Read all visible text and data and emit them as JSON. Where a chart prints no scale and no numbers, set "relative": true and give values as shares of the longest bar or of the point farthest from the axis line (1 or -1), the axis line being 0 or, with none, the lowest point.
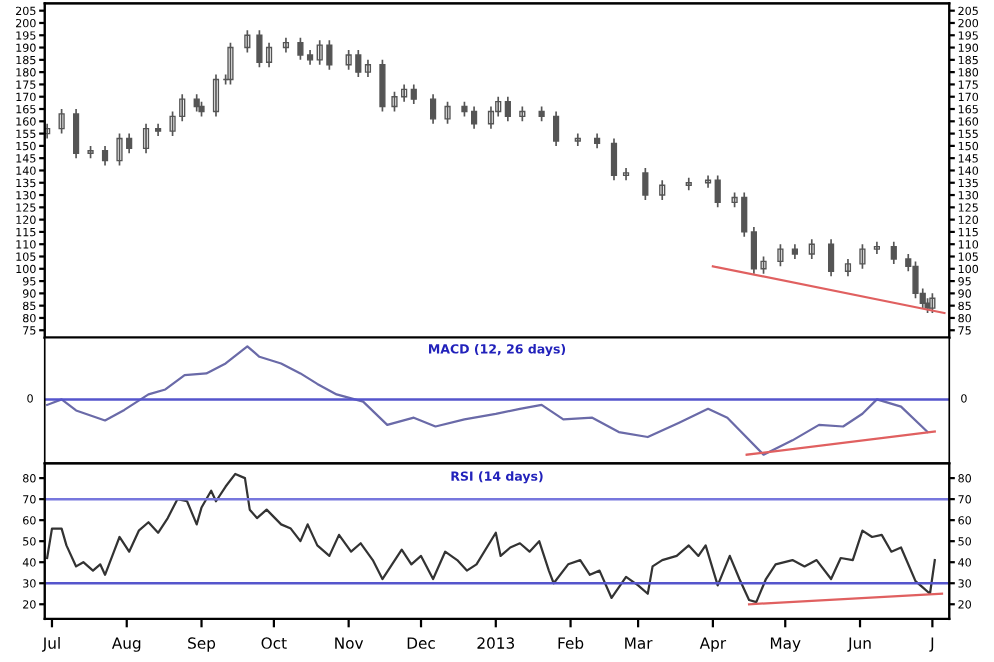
{
  "chart_data": [
    {
      "type": "candlestick",
      "xlim": [
        "2012-06-28",
        "2013-07-08"
      ],
      "ylim": [
        72,
        208
      ],
      "yticks": [
        75,
        80,
        85,
        90,
        95,
        100,
        105,
        110,
        115,
        120,
        125,
        130,
        135,
        140,
        145,
        150,
        155,
        160,
        165,
        170,
        175,
        180,
        185,
        190,
        195,
        200,
        205
      ],
      "y2lim": [
        72,
        208
      ],
      "y2ticks": [
        75,
        80,
        85,
        90,
        95,
        100,
        105,
        110,
        115,
        120,
        125,
        130,
        135,
        140,
        145,
        150,
        155,
        160,
        165,
        170,
        175,
        180,
        185,
        190,
        195,
        200,
        205
      ],
      "tick_labels": "y",
      "grid": false,
      "color": "#555555",
      "x": [
        "2012-06-29",
        "2012-07-05",
        "2012-07-11",
        "2012-07-17",
        "2012-07-23",
        "2012-07-29",
        "2012-08-02",
        "2012-08-09",
        "2012-08-14",
        "2012-08-20",
        "2012-08-24",
        "2012-08-30",
        "2012-09-01",
        "2012-09-07",
        "2012-09-11",
        "2012-09-13",
        "2012-09-20",
        "2012-09-25",
        "2012-09-29",
        "2012-10-06",
        "2012-10-12",
        "2012-10-16",
        "2012-10-20",
        "2012-10-24",
        "2012-11-01",
        "2012-11-05",
        "2012-11-09",
        "2012-11-15",
        "2012-11-20",
        "2012-11-24",
        "2012-11-28",
        "2012-12-06",
        "2012-12-12",
        "2012-12-19",
        "2012-12-23",
        "2012-12-30",
        "2013-01-02",
        "2013-01-06",
        "2013-01-12",
        "2013-01-20",
        "2013-01-26",
        "2013-02-04",
        "2013-02-12",
        "2013-02-19",
        "2013-02-24",
        "2013-03-04",
        "2013-03-11",
        "2013-03-22",
        "2013-03-30",
        "2013-04-03",
        "2013-04-10",
        "2013-04-14",
        "2013-04-18",
        "2013-04-22",
        "2013-04-29",
        "2013-05-05",
        "2013-05-12",
        "2013-05-20",
        "2013-05-27",
        "2013-06-02",
        "2013-06-08",
        "2013-06-15",
        "2013-06-21",
        "2013-06-24",
        "2013-06-27",
        "2013-06-29",
        "2013-07-01"
      ],
      "ohlc": [
        [
          155,
          159,
          153,
          157
        ],
        [
          157,
          165,
          155,
          163
        ],
        [
          163,
          165,
          145,
          147
        ],
        [
          147,
          150,
          145,
          148
        ],
        [
          148,
          150,
          142,
          144
        ],
        [
          144,
          155,
          142,
          153
        ],
        [
          153,
          155,
          147,
          149
        ],
        [
          149,
          159,
          147,
          157
        ],
        [
          157,
          159,
          154,
          156
        ],
        [
          156,
          164,
          154,
          162
        ],
        [
          162,
          171,
          160,
          169
        ],
        [
          169,
          171,
          164,
          166
        ],
        [
          166,
          168,
          162,
          164
        ],
        [
          164,
          179,
          162,
          177
        ],
        [
          177,
          179,
          175,
          177
        ],
        [
          177,
          192,
          175,
          190
        ],
        [
          190,
          197,
          188,
          195
        ],
        [
          195,
          197,
          182,
          184
        ],
        [
          184,
          192,
          182,
          190
        ],
        [
          190,
          194,
          188,
          192
        ],
        [
          192,
          194,
          185,
          187
        ],
        [
          187,
          189,
          183,
          185
        ],
        [
          185,
          193,
          183,
          191
        ],
        [
          191,
          193,
          181,
          183
        ],
        [
          183,
          189,
          181,
          187
        ],
        [
          187,
          189,
          178,
          180
        ],
        [
          180,
          185,
          178,
          183
        ],
        [
          183,
          185,
          164,
          166
        ],
        [
          166,
          172,
          164,
          170
        ],
        [
          170,
          175,
          168,
          173
        ],
        [
          173,
          175,
          167,
          169
        ],
        [
          169,
          171,
          159,
          161
        ],
        [
          161,
          168,
          159,
          166
        ],
        [
          166,
          168,
          162,
          164
        ],
        [
          164,
          166,
          157,
          159
        ],
        [
          159,
          166,
          157,
          164
        ],
        [
          164,
          170,
          162,
          168
        ],
        [
          168,
          170,
          160,
          162
        ],
        [
          162,
          166,
          160,
          164
        ],
        [
          164,
          166,
          160,
          162
        ],
        [
          162,
          164,
          150,
          152
        ],
        [
          152,
          155,
          150,
          153
        ],
        [
          153,
          155,
          149,
          151
        ],
        [
          151,
          153,
          136,
          138
        ],
        [
          138,
          141,
          136,
          139
        ],
        [
          139,
          141,
          128,
          130
        ],
        [
          130,
          136,
          128,
          134
        ],
        [
          134,
          137,
          132,
          135
        ],
        [
          135,
          138,
          133,
          136
        ],
        [
          136,
          138,
          125,
          127
        ],
        [
          127,
          131,
          125,
          129
        ],
        [
          129,
          131,
          113,
          115
        ],
        [
          115,
          117,
          98,
          100
        ],
        [
          100,
          105,
          98,
          103
        ],
        [
          103,
          110,
          101,
          108
        ],
        [
          108,
          110,
          104,
          106
        ],
        [
          106,
          112,
          104,
          110
        ],
        [
          110,
          112,
          97,
          99
        ],
        [
          99,
          104,
          97,
          102
        ],
        [
          102,
          110,
          100,
          108
        ],
        [
          108,
          111,
          106,
          109
        ],
        [
          109,
          111,
          102,
          104
        ],
        [
          104,
          106,
          99,
          101
        ],
        [
          101,
          103,
          88,
          90
        ],
        [
          90,
          92,
          84,
          86
        ],
        [
          86,
          88,
          82,
          84
        ],
        [
          84,
          90,
          82,
          88
        ]
      ],
      "series": [
        {
          "type": "line",
          "color": "#e06060",
          "x": [
            "2013-04-01",
            "2013-07-06"
          ],
          "values": [
            101,
            82
          ]
        }
      ]
    },
    {
      "type": "line",
      "title": "MACD (12, 26 days)",
      "relative": true,
      "xlim": [
        "2012-06-28",
        "2013-07-08"
      ],
      "tick_labels": false,
      "grid": false,
      "ref_lines": [
        {
          "axis": "y",
          "value": 0,
          "label": "0",
          "color": "#5555cc"
        }
      ],
      "series": [
        {
          "color": "#6a6aa8",
          "x": [
            "2012-06-29",
            "2012-07-05",
            "2012-07-11",
            "2012-07-23",
            "2012-07-31",
            "2012-08-10",
            "2012-08-17",
            "2012-08-25",
            "2012-09-03",
            "2012-09-11",
            "2012-09-20",
            "2012-09-25",
            "2012-10-04",
            "2012-10-12",
            "2012-10-19",
            "2012-10-27",
            "2012-11-07",
            "2012-11-17",
            "2012-11-28",
            "2012-12-07",
            "2012-12-19",
            "2013-01-01",
            "2013-01-11",
            "2013-01-20",
            "2013-01-29",
            "2013-02-10",
            "2013-02-21",
            "2013-03-05",
            "2013-03-18",
            "2013-03-30",
            "2013-04-07",
            "2013-04-22",
            "2013-05-04",
            "2013-05-15",
            "2013-05-25",
            "2013-06-02",
            "2013-06-08",
            "2013-06-18",
            "2013-06-29"
          ],
          "values": [
            -0.1,
            0,
            -0.2,
            -0.38,
            -0.19,
            0.09,
            0.18,
            0.44,
            0.47,
            0.65,
            0.96,
            0.77,
            0.65,
            0.47,
            0.28,
            0.09,
            -0.04,
            -0.46,
            -0.33,
            -0.49,
            -0.36,
            -0.26,
            -0.17,
            -0.1,
            -0.36,
            -0.33,
            -0.59,
            -0.68,
            -0.42,
            -0.17,
            -0.33,
            -1,
            -0.74,
            -0.46,
            -0.49,
            -0.26,
            0,
            -0.13,
            -0.59
          ]
        },
        {
          "color": "#e06060",
          "x": [
            "2013-04-15",
            "2013-07-02"
          ],
          "values": [
            -1.0,
            -0.58
          ]
        }
      ]
    },
    {
      "type": "line",
      "title": "RSI (14 days)",
      "xlim": [
        "2012-06-28",
        "2013-07-08"
      ],
      "ylim": [
        13,
        87
      ],
      "yticks": [
        20,
        30,
        40,
        50,
        60,
        70,
        80
      ],
      "y2lim": [
        13,
        87
      ],
      "y2ticks": [
        20,
        30,
        40,
        50,
        60,
        70,
        80
      ],
      "grid": false,
      "xticks": [
        {
          "value": "2012-07-01",
          "label": "Jul"
        },
        {
          "value": "2012-08-01",
          "label": "Aug"
        },
        {
          "value": "2012-09-01",
          "label": "Sep"
        },
        {
          "value": "2012-10-01",
          "label": "Oct"
        },
        {
          "value": "2012-11-01",
          "label": "Nov"
        },
        {
          "value": "2012-12-01",
          "label": "Dec"
        },
        {
          "value": "2013-01-01",
          "label": "2013"
        },
        {
          "value": "2013-02-01",
          "label": "Feb"
        },
        {
          "value": "2013-03-01",
          "label": "Mar"
        },
        {
          "value": "2013-04-01",
          "label": "Apr"
        },
        {
          "value": "2013-05-01",
          "label": "May"
        },
        {
          "value": "2013-06-01",
          "label": "Jun"
        },
        {
          "value": "2013-07-01",
          "label": "J"
        }
      ],
      "ref_lines": [
        {
          "axis": "y",
          "value": 70,
          "color": "#7777dd"
        },
        {
          "axis": "y",
          "value": 30,
          "color": "#5555cc"
        }
      ],
      "series": [
        {
          "color": "#333333",
          "x": [
            "2012-06-29",
            "2012-07-01",
            "2012-07-05",
            "2012-07-07",
            "2012-07-11",
            "2012-07-14",
            "2012-07-18",
            "2012-07-21",
            "2012-07-23",
            "2012-07-27",
            "2012-07-29",
            "2012-08-02",
            "2012-08-06",
            "2012-08-10",
            "2012-08-14",
            "2012-08-18",
            "2012-08-22",
            "2012-08-26",
            "2012-08-30",
            "2012-09-01",
            "2012-09-05",
            "2012-09-07",
            "2012-09-11",
            "2012-09-15",
            "2012-09-19",
            "2012-09-21",
            "2012-09-24",
            "2012-09-28",
            "2012-10-04",
            "2012-10-08",
            "2012-10-12",
            "2012-10-15",
            "2012-10-19",
            "2012-10-24",
            "2012-10-28",
            "2012-11-02",
            "2012-11-06",
            "2012-11-11",
            "2012-11-15",
            "2012-11-19",
            "2012-11-23",
            "2012-11-27",
            "2012-12-01",
            "2012-12-06",
            "2012-12-11",
            "2012-12-16",
            "2012-12-20",
            "2012-12-24",
            "2013-01-01",
            "2013-01-03",
            "2013-01-07",
            "2013-01-11",
            "2013-01-15",
            "2013-01-19",
            "2013-01-23",
            "2013-01-25",
            "2013-01-31",
            "2013-02-05",
            "2013-02-09",
            "2013-02-13",
            "2013-02-18",
            "2013-02-24",
            "2013-03-01",
            "2013-03-05",
            "2013-03-07",
            "2013-03-11",
            "2013-03-17",
            "2013-03-22",
            "2013-03-26",
            "2013-03-29",
            "2013-04-03",
            "2013-04-08",
            "2013-04-12",
            "2013-04-16",
            "2013-04-19",
            "2013-04-23",
            "2013-04-27",
            "2013-05-04",
            "2013-05-09",
            "2013-05-14",
            "2013-05-20",
            "2013-05-24",
            "2013-05-29",
            "2013-06-02",
            "2013-06-06",
            "2013-06-10",
            "2013-06-14",
            "2013-06-18",
            "2013-06-21",
            "2013-06-24",
            "2013-06-27",
            "2013-06-30",
            "2013-07-02"
          ],
          "values": [
            42,
            56,
            56,
            48,
            38,
            40,
            36,
            39,
            34,
            46,
            52,
            45,
            55,
            59,
            54,
            61,
            70,
            69,
            58,
            66,
            74,
            69,
            76,
            82,
            80,
            65,
            61,
            65,
            58,
            56,
            50,
            58,
            48,
            43,
            53,
            45,
            49,
            41,
            32,
            39,
            46,
            39,
            43,
            32,
            45,
            41,
            36,
            39,
            54,
            43,
            47,
            49,
            45,
            50,
            36,
            30,
            39,
            41,
            34,
            36,
            23,
            33,
            29,
            25,
            38,
            41,
            43,
            48,
            43,
            48,
            29,
            43,
            32,
            22,
            21,
            32,
            39,
            41,
            38,
            41,
            32,
            42,
            41,
            55,
            52,
            53,
            45,
            47,
            39,
            31,
            28,
            25,
            41
          ]
        },
        {
          "color": "#e06060",
          "x": [
            "2013-04-16",
            "2013-07-05"
          ],
          "values": [
            20,
            25
          ]
        }
      ]
    }
  ]
}
